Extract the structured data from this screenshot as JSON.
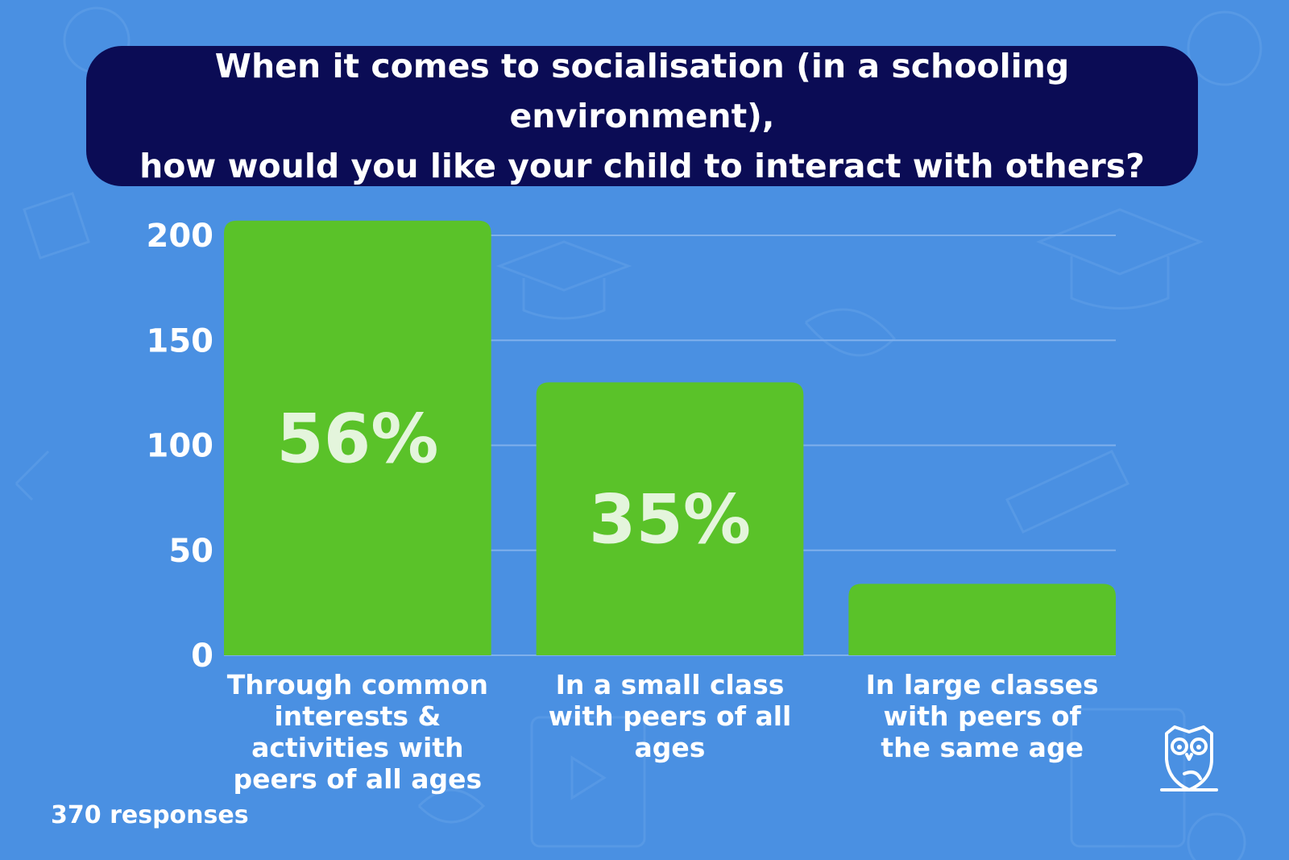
{
  "title": {
    "line1": "When it comes to socialisation (in a schooling environment),",
    "line2": "how would you like your child to interact with others?"
  },
  "footer": {
    "responses": "370 responses"
  },
  "colors": {
    "background": "#4a90e2",
    "title_bg": "#0b0c55",
    "bar": "#5ac229",
    "bar_label": "#e4f5dc",
    "text": "#ffffff",
    "grid": "#7fb0ec"
  },
  "logo": {
    "icon": "owl-icon"
  },
  "chart_data": {
    "type": "bar",
    "categories": [
      "Through common interests & activities with peers of all ages",
      "In a small class with peers of all ages",
      "In large classes with peers of the same age"
    ],
    "category_lines": [
      [
        "Through common",
        "interests &",
        "activities with",
        "peers of all ages"
      ],
      [
        "In a small class",
        "with peers of all",
        "ages"
      ],
      [
        "In large classes",
        "with peers of",
        "the same age"
      ]
    ],
    "values": [
      207,
      130,
      34
    ],
    "data_labels": [
      "56%",
      "35%",
      ""
    ],
    "yticks": [
      0,
      50,
      100,
      150,
      200
    ],
    "ylim": [
      0,
      200
    ],
    "grid": true,
    "xlabel": "",
    "ylabel": ""
  }
}
